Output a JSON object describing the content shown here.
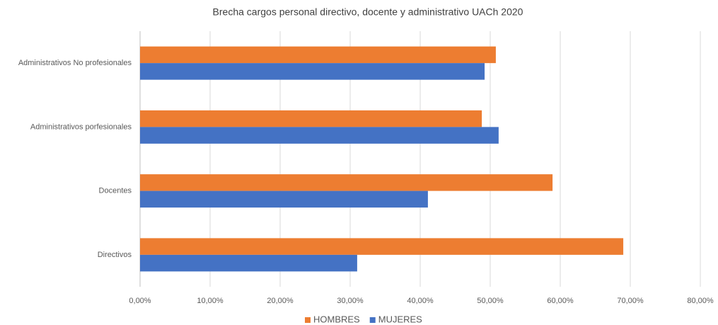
{
  "chart_data": {
    "type": "hbar",
    "title": "Brecha cargos personal directivo, docente y administrativo UACh 2020",
    "categories": [
      "Administrativos No profesionales",
      "Administrativos porfesionales",
      "Docentes",
      "Directivos"
    ],
    "series": [
      {
        "name": "HOMBRES",
        "color": "#ed7d31",
        "values": [
          50.8,
          48.8,
          58.9,
          69.0
        ]
      },
      {
        "name": "MUJERES",
        "color": "#4472c4",
        "values": [
          49.2,
          51.2,
          41.1,
          31.0
        ]
      }
    ],
    "xlim": [
      0,
      80
    ],
    "xticks": [
      {
        "value": 0,
        "label": "0,00%"
      },
      {
        "value": 10,
        "label": "10,00%"
      },
      {
        "value": 20,
        "label": "20,00%"
      },
      {
        "value": 30,
        "label": "30,00%"
      },
      {
        "value": 40,
        "label": "40,00%"
      },
      {
        "value": 50,
        "label": "50,00%"
      },
      {
        "value": 60,
        "label": "60,00%"
      },
      {
        "value": 70,
        "label": "70,00%"
      },
      {
        "value": 80,
        "label": "80,00%"
      }
    ],
    "grid": true,
    "legend": "bottom"
  }
}
